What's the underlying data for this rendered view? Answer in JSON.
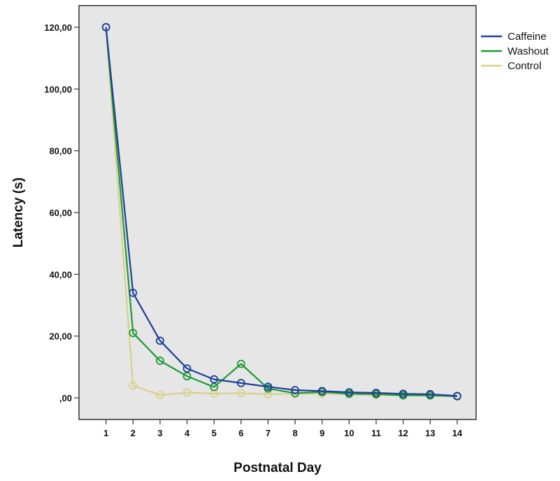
{
  "chart_data": {
    "type": "line",
    "xlabel": "Postnatal Day",
    "ylabel": "Latency (s)",
    "x": [
      1,
      2,
      3,
      4,
      5,
      6,
      7,
      8,
      9,
      10,
      11,
      12,
      13,
      14
    ],
    "x_tick_labels": [
      "1",
      "2",
      "3",
      "4",
      "5",
      "6",
      "7",
      "8",
      "9",
      "10",
      "11",
      "12",
      "13",
      "14"
    ],
    "xlim": [
      0,
      14.7
    ],
    "ylim": [
      -7,
      127
    ],
    "y_ticks": [
      0,
      20,
      40,
      60,
      80,
      100,
      120
    ],
    "y_tick_labels": [
      ",00",
      "20,00",
      "40,00",
      "60,00",
      "80,00",
      "100,00",
      "120,00"
    ],
    "grid": false,
    "legend_position": "right, outside plot",
    "series": [
      {
        "name": "Caffeine",
        "color": "#1f3f99",
        "values": [
          120,
          34,
          18.5,
          9.5,
          6,
          4.8,
          3.6,
          2.5,
          2.2,
          1.8,
          1.6,
          1.3,
          1.2,
          0.6
        ]
      },
      {
        "name": "Washout",
        "color": "#1d9a36",
        "values": [
          120,
          21,
          12,
          7,
          3.5,
          11,
          3,
          1.5,
          1.9,
          1.3,
          1.2,
          0.8,
          0.8,
          0.5
        ]
      },
      {
        "name": "Control",
        "color": "#d8d08a",
        "values": [
          120,
          4,
          0.9,
          1.7,
          1.4,
          1.5,
          1.2,
          1.3,
          1.3,
          1.2,
          0.9,
          0.9,
          0.7,
          0.5
        ]
      }
    ],
    "colors": {
      "plot_background": "#e6e6e6",
      "frame": "#333333"
    }
  }
}
